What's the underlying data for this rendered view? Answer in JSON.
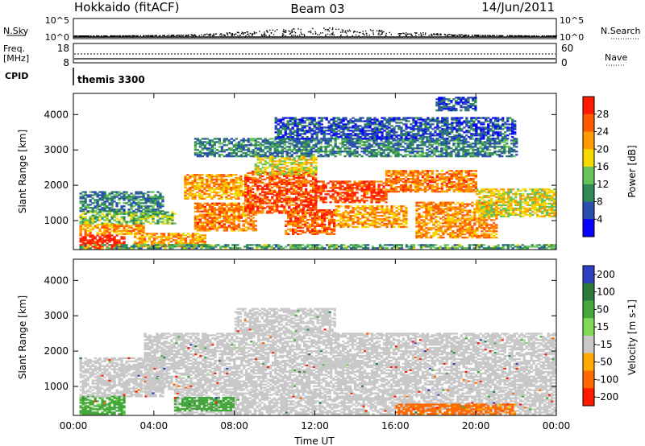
{
  "header": {
    "station": "Hokkaido (fitACF)",
    "beam": "Beam 03",
    "date": "14/Jun/2011"
  },
  "top_panels": {
    "nsky": {
      "label": "N.Sky",
      "left_ticks": [
        "10^5",
        "10^0"
      ],
      "right_ticks": [
        "10^5",
        "10^0"
      ],
      "right_label": "N.Search"
    },
    "freq": {
      "label_line1": "Freq.",
      "label_line2": "[MHz]",
      "left_ticks": [
        "18",
        "8"
      ],
      "right_ticks": [
        "60",
        "0"
      ],
      "right_label": "Nave"
    },
    "cpid": {
      "label": "CPID",
      "value": "themis 3300"
    }
  },
  "chart_data": [
    {
      "type": "heatmap",
      "title": "",
      "xlabel": "Time UT",
      "ylabel": "Slant Range [km]",
      "x_ticks": [
        "00:00",
        "04:00",
        "08:00",
        "12:00",
        "16:00",
        "20:00",
        "00:00"
      ],
      "xlim_hours": [
        0,
        24
      ],
      "y_ticks": [
        1000,
        2000,
        3000,
        4000
      ],
      "ylim": [
        180,
        4600
      ],
      "colorbar": {
        "label": "Power [dB]",
        "ticks": [
          4,
          8,
          12,
          16,
          20,
          24,
          28
        ],
        "range": [
          0,
          32
        ],
        "colors": [
          "#0a00ff",
          "#2a4fb0",
          "#2e8b57",
          "#66c25a",
          "#f5d800",
          "#ff9a00",
          "#ff5a00",
          "#ff1a00"
        ]
      },
      "regions": [
        {
          "t": [
            0.3,
            2.5
          ],
          "r": [
            200,
            600
          ],
          "v": 30
        },
        {
          "t": [
            0.3,
            3.5
          ],
          "r": [
            600,
            900
          ],
          "v": 22
        },
        {
          "t": [
            0.3,
            5.0
          ],
          "r": [
            900,
            1250
          ],
          "v": 14
        },
        {
          "t": [
            0.3,
            4.5
          ],
          "r": [
            1250,
            1800
          ],
          "v": 9
        },
        {
          "t": [
            3.0,
            6.5
          ],
          "r": [
            250,
            650
          ],
          "v": 22
        },
        {
          "t": [
            6.0,
            9.0
          ],
          "r": [
            700,
            1500
          ],
          "v": 24
        },
        {
          "t": [
            5.5,
            8.5
          ],
          "r": [
            1600,
            2300
          ],
          "v": 22
        },
        {
          "t": [
            8.5,
            12.0
          ],
          "r": [
            1200,
            2400
          ],
          "v": 27
        },
        {
          "t": [
            10.5,
            13.0
          ],
          "r": [
            600,
            1300
          ],
          "v": 26
        },
        {
          "t": [
            12.0,
            15.5
          ],
          "r": [
            1500,
            2100
          ],
          "v": 28
        },
        {
          "t": [
            13.0,
            16.5
          ],
          "r": [
            800,
            1400
          ],
          "v": 22
        },
        {
          "t": [
            15.5,
            20.0
          ],
          "r": [
            1800,
            2400
          ],
          "v": 24
        },
        {
          "t": [
            17.0,
            21.0
          ],
          "r": [
            500,
            1500
          ],
          "v": 23
        },
        {
          "t": [
            20.0,
            24.0
          ],
          "r": [
            1100,
            1900
          ],
          "v": 18
        },
        {
          "t": [
            9.0,
            12.0
          ],
          "r": [
            2300,
            2800
          ],
          "v": 18
        },
        {
          "t": [
            6.0,
            22.0
          ],
          "r": [
            2800,
            3300
          ],
          "v": 9
        },
        {
          "t": [
            10.0,
            22.0
          ],
          "r": [
            3300,
            3900
          ],
          "v": 6
        },
        {
          "t": [
            18.0,
            20.0
          ],
          "r": [
            4100,
            4500
          ],
          "v": 6
        },
        {
          "t": [
            0.3,
            24.0
          ],
          "r": [
            200,
            300
          ],
          "v": 12
        }
      ]
    },
    {
      "type": "heatmap",
      "title": "",
      "xlabel": "Time UT",
      "ylabel": "Slant Range [km]",
      "x_ticks": [
        "00:00",
        "04:00",
        "08:00",
        "12:00",
        "16:00",
        "20:00",
        "00:00"
      ],
      "xlim_hours": [
        0,
        24
      ],
      "y_ticks": [
        1000,
        2000,
        3000,
        4000
      ],
      "ylim": [
        180,
        4600
      ],
      "colorbar": {
        "label": "Velocity [m s-1]",
        "ticks": [
          200,
          100,
          50,
          15,
          -15,
          -50,
          -100,
          -200
        ],
        "colors": [
          "#2b3fbf",
          "#2a7a3a",
          "#44a83a",
          "#7ed957",
          "#c8c8c8",
          "#ffaa00",
          "#ff6a00",
          "#ff1a00"
        ]
      },
      "regions": [
        {
          "t": [
            0.3,
            2.5
          ],
          "r": [
            200,
            700
          ],
          "v": 40
        },
        {
          "t": [
            0.3,
            4.5
          ],
          "r": [
            700,
            1800
          ],
          "v": 0
        },
        {
          "t": [
            3.5,
            24.0
          ],
          "r": [
            900,
            2500
          ],
          "v": 0
        },
        {
          "t": [
            8.0,
            13.0
          ],
          "r": [
            2500,
            3200
          ],
          "v": 0
        },
        {
          "t": [
            5.0,
            24.0
          ],
          "r": [
            200,
            900
          ],
          "v": 0
        },
        {
          "t": [
            16.0,
            22.0
          ],
          "r": [
            200,
            500
          ],
          "v": -40
        },
        {
          "t": [
            5.0,
            8.0
          ],
          "r": [
            300,
            700
          ],
          "v": 50
        },
        {
          "t": [
            12.0,
            14.0
          ],
          "r": [
            1500,
            1800
          ],
          "v": 5
        }
      ]
    }
  ]
}
